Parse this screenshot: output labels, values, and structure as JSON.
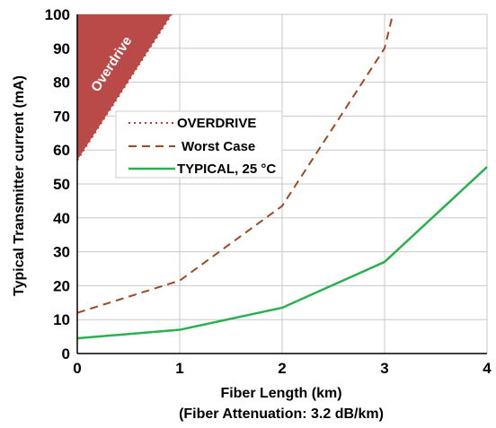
{
  "chart_data": {
    "type": "line",
    "xlabel": "Fiber Length (km)",
    "xlabel_sub": "(Fiber Attenuation: 3.2 dB/km)",
    "ylabel": "Typical Transmitter current (mA)",
    "xlim": [
      0,
      4
    ],
    "ylim": [
      0,
      100
    ],
    "xticks": [
      "0",
      "1",
      "2",
      "3",
      "4"
    ],
    "yticks": [
      "0",
      "10",
      "20",
      "30",
      "40",
      "50",
      "60",
      "70",
      "80",
      "90",
      "100"
    ],
    "grid": true,
    "legend_position": "center-left",
    "overdrive_region": {
      "label": "Overdrive",
      "color": "#b94a48",
      "boundary": [
        [
          0,
          57
        ],
        [
          0.92,
          100
        ]
      ]
    },
    "series": [
      {
        "name": "OVERDRIVE",
        "style": "dotted",
        "color": "#c0392b",
        "x": [
          0,
          0.92
        ],
        "y": [
          57,
          100
        ]
      },
      {
        "name": "Worst Case",
        "style": "dashed",
        "color": "#9e4a21",
        "x": [
          0,
          1,
          2,
          3,
          3.08
        ],
        "y": [
          12,
          21.5,
          43.5,
          90,
          100
        ]
      },
      {
        "name": "TYPICAL, 25 °C",
        "style": "solid",
        "color": "#2ab04f",
        "x": [
          0,
          1,
          2,
          3,
          4
        ],
        "y": [
          4.5,
          7,
          13.5,
          27,
          55
        ]
      }
    ]
  }
}
